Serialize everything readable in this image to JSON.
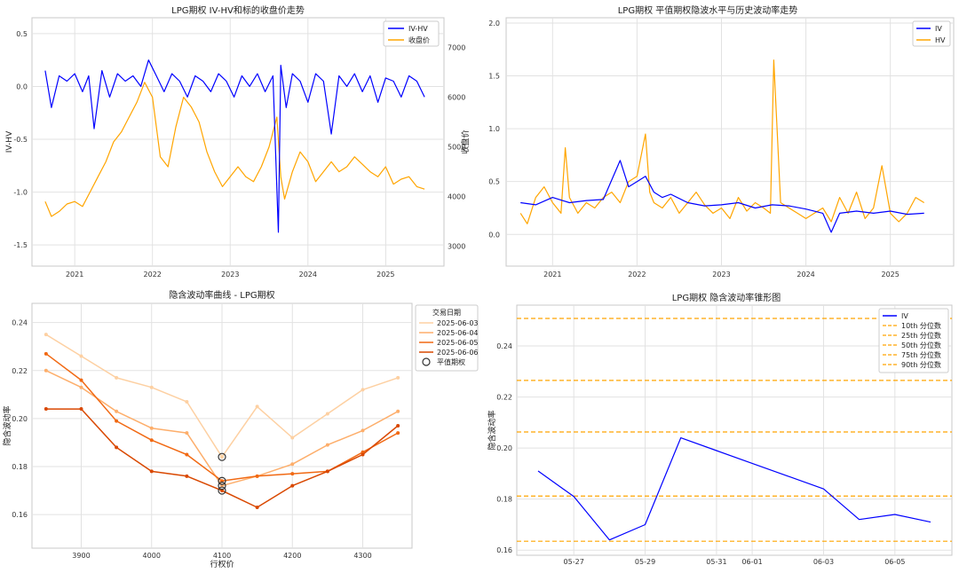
{
  "charts": [
    {
      "id": "p1",
      "type": "line",
      "title": "LPG期权 IV-HV和标的收盘价走势",
      "ylabel_left": "IV-HV",
      "ylabel_right": "收盘价",
      "ylabel_left_color": "#1f77b4",
      "ylabel_right_color": "#d62728",
      "x_ticks": [
        "2021",
        "2022",
        "2023",
        "2024",
        "2025"
      ],
      "y_left_ticks": [
        "0.5",
        "0.0",
        "-0.5",
        "-1.0",
        "-1.5"
      ],
      "y_right_ticks": [
        "7000",
        "6000",
        "5000",
        "4000",
        "3000"
      ],
      "legend": [
        {
          "label": "IV-HV",
          "color": "#0000ff"
        },
        {
          "label": "收盘价",
          "color": "#ffa500"
        }
      ]
    },
    {
      "id": "p2",
      "type": "line",
      "title": "LPG期权 平值期权隐波水平与历史波动率走势",
      "x_ticks": [
        "2021",
        "2022",
        "2023",
        "2024",
        "2025"
      ],
      "y_ticks": [
        "2.0",
        "1.5",
        "1.0",
        "0.5",
        "0.0"
      ],
      "legend": [
        {
          "label": "IV",
          "color": "#0000ff"
        },
        {
          "label": "HV",
          "color": "#ffa500"
        }
      ]
    },
    {
      "id": "p3",
      "type": "line",
      "title": "隐含波动率曲线 - LPG期权",
      "xlabel": "行权价",
      "ylabel": "隐含波动率",
      "x_ticks": [
        "3900",
        "4000",
        "4100",
        "4200",
        "4300"
      ],
      "y_ticks": [
        "0.24",
        "0.22",
        "0.20",
        "0.18",
        "0.16"
      ],
      "legend_title": "交易日期",
      "legend": [
        {
          "label": "2025-06-03",
          "color": "#fdd0a2"
        },
        {
          "label": "2025-06-04",
          "color": "#fdae6b"
        },
        {
          "label": "2025-06-05",
          "color": "#f16913"
        },
        {
          "label": "2025-06-06",
          "color": "#d94801"
        },
        {
          "label": "平值期权",
          "color": "#333333",
          "marker": "circle"
        }
      ]
    },
    {
      "id": "p4",
      "type": "line",
      "title": "LPG期权 隐含波动率锥形图",
      "ylabel": "隐含波动率",
      "x_ticks": [
        "05-27",
        "05-29",
        "05-31",
        "06-01",
        "06-03",
        "06-05"
      ],
      "y_ticks": [
        "0.24",
        "0.22",
        "0.20",
        "0.18",
        "0.16"
      ],
      "legend": [
        {
          "label": "IV",
          "color": "#0000ff",
          "style": "solid"
        },
        {
          "label": "10th 分位数",
          "color": "#ffa500",
          "style": "dashed"
        },
        {
          "label": "25th 分位数",
          "color": "#ffa500",
          "style": "dashed"
        },
        {
          "label": "50th 分位数",
          "color": "#ffa500",
          "style": "dashed"
        },
        {
          "label": "75th 分位数",
          "color": "#ffa500",
          "style": "dashed"
        },
        {
          "label": "90th 分位数",
          "color": "#ffa500",
          "style": "dashed"
        }
      ]
    }
  ],
  "chart_data": [
    {
      "type": "line",
      "title": "LPG期权 IV-HV和标的收盘价走势",
      "ylabel": "IV-HV",
      "ylabel_secondary": "收盘价",
      "ylim": [
        -1.7,
        0.65
      ],
      "ylim_secondary": [
        2600,
        7600
      ],
      "xlim": [
        2020.45,
        2025.75
      ],
      "series": [
        {
          "name": "IV-HV",
          "axis": "left",
          "x": [
            2020.62,
            2020.7,
            2020.8,
            2020.9,
            2021.0,
            2021.1,
            2021.18,
            2021.25,
            2021.35,
            2021.45,
            2021.55,
            2021.65,
            2021.75,
            2021.85,
            2021.95,
            2022.05,
            2022.15,
            2022.25,
            2022.35,
            2022.45,
            2022.55,
            2022.65,
            2022.75,
            2022.85,
            2022.95,
            2023.05,
            2023.15,
            2023.25,
            2023.35,
            2023.45,
            2023.55,
            2023.62,
            2023.65,
            2023.72,
            2023.8,
            2023.9,
            2024.0,
            2024.1,
            2024.2,
            2024.3,
            2024.4,
            2024.5,
            2024.6,
            2024.7,
            2024.8,
            2024.9,
            2025.0,
            2025.1,
            2025.2,
            2025.3,
            2025.4,
            2025.5
          ],
          "y": [
            0.15,
            -0.2,
            0.1,
            0.05,
            0.12,
            -0.05,
            0.1,
            -0.4,
            0.15,
            -0.1,
            0.12,
            0.05,
            0.1,
            0.0,
            0.25,
            0.1,
            -0.05,
            0.12,
            0.05,
            -0.1,
            0.1,
            0.05,
            -0.05,
            0.12,
            0.05,
            -0.1,
            0.1,
            0.0,
            0.12,
            -0.05,
            0.1,
            -1.38,
            0.2,
            -0.2,
            0.12,
            0.05,
            -0.15,
            0.12,
            0.05,
            -0.45,
            0.1,
            0.0,
            0.12,
            -0.05,
            0.1,
            -0.15,
            0.08,
            0.05,
            -0.1,
            0.1,
            0.05,
            -0.1
          ]
        },
        {
          "name": "收盘价",
          "axis": "right",
          "x": [
            2020.62,
            2020.7,
            2020.8,
            2020.9,
            2021.0,
            2021.1,
            2021.2,
            2021.3,
            2021.4,
            2021.5,
            2021.6,
            2021.7,
            2021.8,
            2021.9,
            2022.0,
            2022.1,
            2022.2,
            2022.3,
            2022.4,
            2022.5,
            2022.6,
            2022.7,
            2022.8,
            2022.9,
            2023.0,
            2023.1,
            2023.2,
            2023.3,
            2023.4,
            2023.5,
            2023.6,
            2023.65,
            2023.7,
            2023.8,
            2023.9,
            2024.0,
            2024.1,
            2024.2,
            2024.3,
            2024.4,
            2024.5,
            2024.6,
            2024.7,
            2024.8,
            2024.9,
            2025.0,
            2025.1,
            2025.2,
            2025.3,
            2025.4,
            2025.5
          ],
          "y": [
            3900,
            3600,
            3700,
            3850,
            3900,
            3800,
            4100,
            4400,
            4700,
            5100,
            5300,
            5600,
            5900,
            6300,
            6000,
            4800,
            4600,
            5400,
            6000,
            5800,
            5500,
            4900,
            4500,
            4200,
            4400,
            4600,
            4400,
            4300,
            4600,
            5000,
            5600,
            4400,
            3950,
            4500,
            4900,
            4700,
            4300,
            4500,
            4700,
            4500,
            4600,
            4800,
            4650,
            4500,
            4400,
            4600,
            4250,
            4350,
            4400,
            4200,
            4150
          ]
        }
      ]
    },
    {
      "type": "line",
      "title": "LPG期权 平值期权隐波水平与历史波动率走势",
      "ylim": [
        -0.3,
        2.05
      ],
      "xlim": [
        2020.45,
        2025.75
      ],
      "series": [
        {
          "name": "IV",
          "x": [
            2020.62,
            2020.8,
            2021.0,
            2021.2,
            2021.4,
            2021.6,
            2021.8,
            2021.9,
            2022.0,
            2022.1,
            2022.2,
            2022.3,
            2022.4,
            2022.6,
            2022.8,
            2023.0,
            2023.2,
            2023.4,
            2023.6,
            2023.8,
            2024.0,
            2024.2,
            2024.3,
            2024.4,
            2024.6,
            2024.8,
            2025.0,
            2025.2,
            2025.4
          ],
          "y": [
            0.3,
            0.28,
            0.35,
            0.3,
            0.32,
            0.33,
            0.7,
            0.45,
            0.5,
            0.55,
            0.4,
            0.35,
            0.38,
            0.3,
            0.27,
            0.28,
            0.3,
            0.25,
            0.28,
            0.27,
            0.24,
            0.2,
            0.02,
            0.2,
            0.22,
            0.2,
            0.22,
            0.19,
            0.2
          ]
        },
        {
          "name": "HV",
          "x": [
            2020.62,
            2020.7,
            2020.8,
            2020.9,
            2021.0,
            2021.1,
            2021.15,
            2021.2,
            2021.3,
            2021.4,
            2021.5,
            2021.6,
            2021.7,
            2021.8,
            2021.9,
            2022.0,
            2022.1,
            2022.15,
            2022.2,
            2022.3,
            2022.4,
            2022.5,
            2022.6,
            2022.7,
            2022.8,
            2022.9,
            2023.0,
            2023.1,
            2023.2,
            2023.3,
            2023.4,
            2023.5,
            2023.58,
            2023.62,
            2023.7,
            2023.8,
            2023.9,
            2024.0,
            2024.1,
            2024.2,
            2024.3,
            2024.4,
            2024.5,
            2024.6,
            2024.7,
            2024.8,
            2024.9,
            2025.0,
            2025.1,
            2025.2,
            2025.3,
            2025.4
          ],
          "y": [
            0.2,
            0.1,
            0.35,
            0.45,
            0.3,
            0.2,
            0.82,
            0.35,
            0.2,
            0.3,
            0.25,
            0.35,
            0.4,
            0.3,
            0.5,
            0.55,
            0.95,
            0.4,
            0.3,
            0.25,
            0.35,
            0.2,
            0.3,
            0.4,
            0.28,
            0.2,
            0.25,
            0.15,
            0.35,
            0.22,
            0.3,
            0.25,
            0.2,
            1.65,
            0.3,
            0.25,
            0.2,
            0.15,
            0.2,
            0.25,
            0.12,
            0.35,
            0.2,
            0.4,
            0.15,
            0.25,
            0.65,
            0.2,
            0.12,
            0.2,
            0.35,
            0.3
          ]
        }
      ]
    },
    {
      "type": "line",
      "title": "隐含波动率曲线 - LPG期权",
      "xlabel": "行权价",
      "ylabel": "隐含波动率",
      "xlim": [
        3830,
        4370
      ],
      "ylim": [
        0.146,
        0.248
      ],
      "x": [
        3850,
        3900,
        3950,
        4000,
        4050,
        4100,
        4150,
        4200,
        4250,
        4300,
        4350
      ],
      "series": [
        {
          "name": "2025-06-03",
          "values": [
            0.235,
            0.226,
            0.217,
            0.213,
            0.207,
            0.184,
            0.205,
            0.192,
            0.202,
            0.212,
            0.217
          ]
        },
        {
          "name": "2025-06-04",
          "values": [
            0.22,
            0.213,
            0.203,
            0.196,
            0.194,
            0.172,
            0.176,
            0.181,
            0.189,
            0.195,
            0.203
          ]
        },
        {
          "name": "2025-06-05",
          "values": [
            0.227,
            0.216,
            0.199,
            0.191,
            0.185,
            0.174,
            0.176,
            0.177,
            0.178,
            0.186,
            0.194
          ]
        },
        {
          "name": "2025-06-06",
          "values": [
            0.204,
            0.204,
            0.188,
            0.178,
            0.176,
            0.17,
            0.163,
            0.172,
            0.178,
            0.185,
            0.197
          ]
        }
      ],
      "atm_points": [
        {
          "x": 4100,
          "y": 0.184
        },
        {
          "x": 4100,
          "y": 0.172
        },
        {
          "x": 4100,
          "y": 0.174
        },
        {
          "x": 4100,
          "y": 0.17
        }
      ]
    },
    {
      "type": "line",
      "title": "LPG期权 隐含波动率锥形图",
      "ylabel": "隐含波动率",
      "ylim": [
        0.158,
        0.256
      ],
      "categories": [
        "05-26",
        "05-27",
        "05-28",
        "05-29",
        "05-30",
        "05-31",
        "06-01",
        "06-02",
        "06-03",
        "06-04",
        "06-05",
        "06-06"
      ],
      "series": [
        {
          "name": "IV",
          "values": [
            0.191,
            0.181,
            0.164,
            0.17,
            0.204,
            0.199,
            0.194,
            0.189,
            0.184,
            0.172,
            0.174,
            0.171
          ]
        }
      ],
      "quantiles": [
        {
          "name": "10th 分位数",
          "value": 0.1635
        },
        {
          "name": "25th 分位数",
          "value": 0.1812
        },
        {
          "name": "50th 分位数",
          "value": 0.2063
        },
        {
          "name": "75th 分位数",
          "value": 0.2265
        },
        {
          "name": "90th 分位数",
          "value": 0.2508
        }
      ]
    }
  ]
}
